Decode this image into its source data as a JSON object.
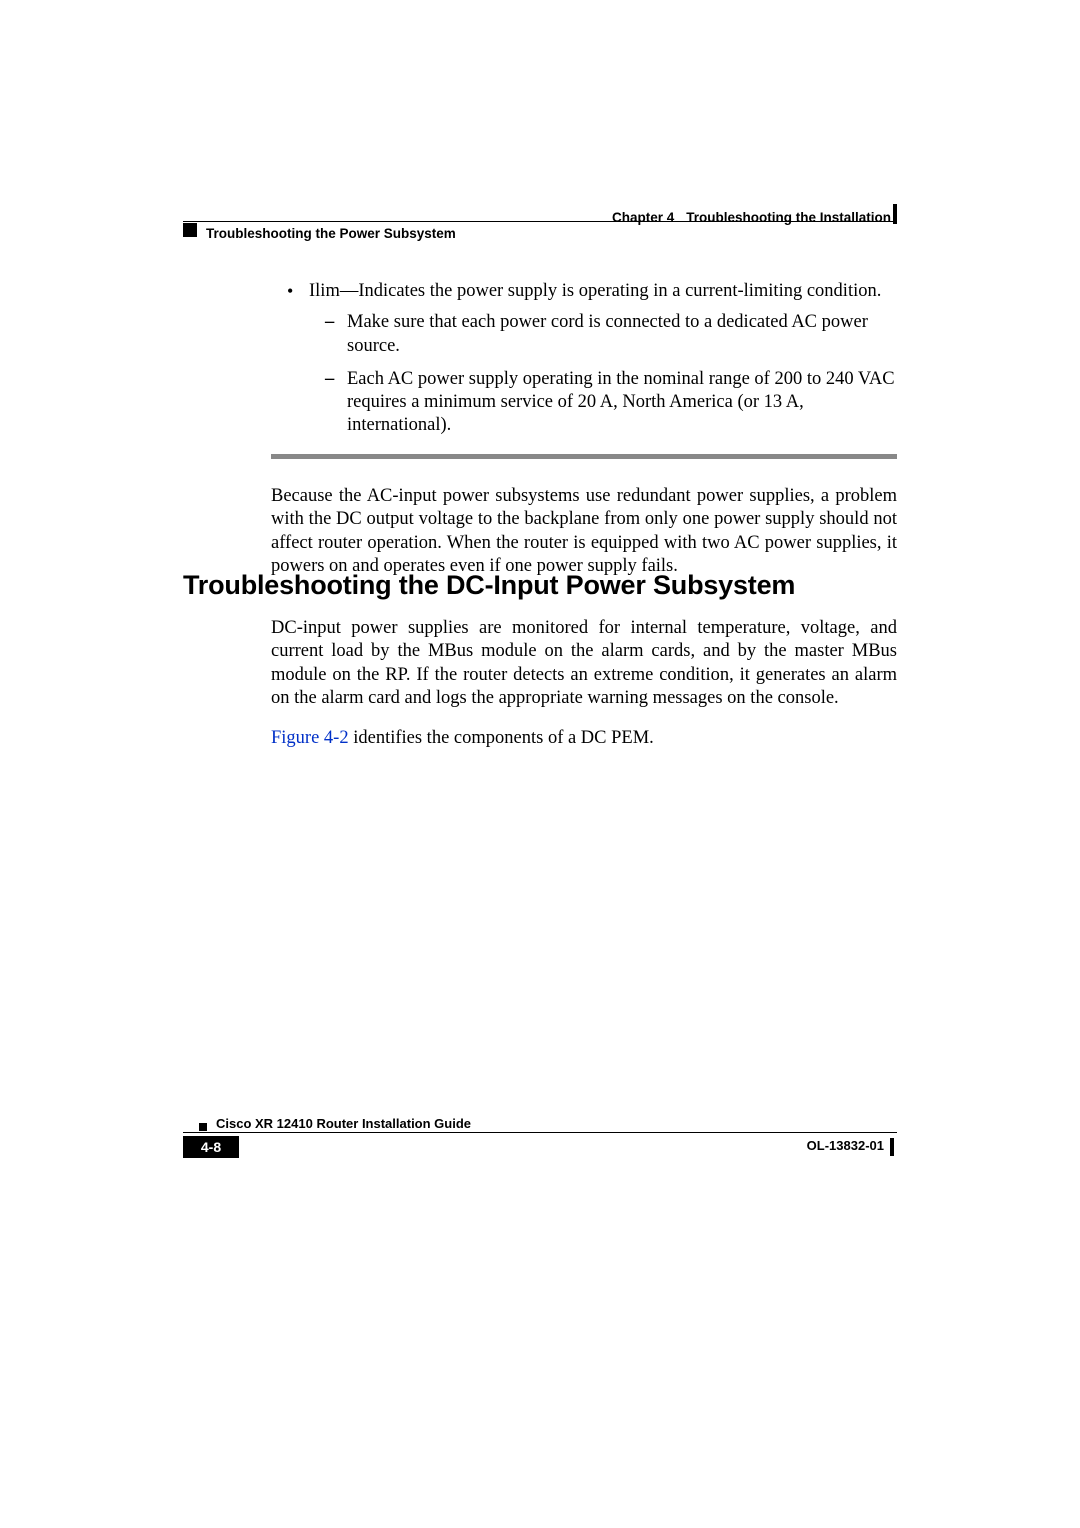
{
  "header": {
    "chapter_label": "Chapter 4",
    "chapter_title": "Troubleshooting the Installation",
    "section_running": "Troubleshooting the Power Subsystem"
  },
  "body": {
    "bullet1_lead": "Ilim—Indicates the power supply is operating in a current-limiting condition.",
    "dash1": "Make sure that each power cord is connected to a dedicated AC power source.",
    "dash2": "Each AC power supply operating in the nominal range of 200 to 240 VAC requires a minimum service of 20 A, North America (or 13 A, international).",
    "para_after_rule": "Because the AC-input power subsystems use redundant power supplies, a problem with the DC output voltage to the backplane from only one power supply should not affect router operation. When the router is equipped with two AC power supplies, it powers on and operates even if one power supply fails.",
    "h2": "Troubleshooting the DC-Input Power Subsystem",
    "para_dc": "DC-input power supplies are monitored for internal temperature, voltage, and current load by the MBus module on the alarm cards, and by the master MBus module on the RP. If the router detects an extreme condition, it generates an alarm on the alarm card and logs the appropriate warning messages on the console.",
    "figref_link": "Figure 4-2",
    "figref_rest": " identifies the components of a DC PEM."
  },
  "footer": {
    "guide_title": "Cisco XR 12410 Router Installation Guide",
    "page_number": "4-8",
    "doc_number": "OL-13832-01"
  },
  "colors": {
    "link": "#0030c8",
    "rule_shade": "#848484"
  }
}
